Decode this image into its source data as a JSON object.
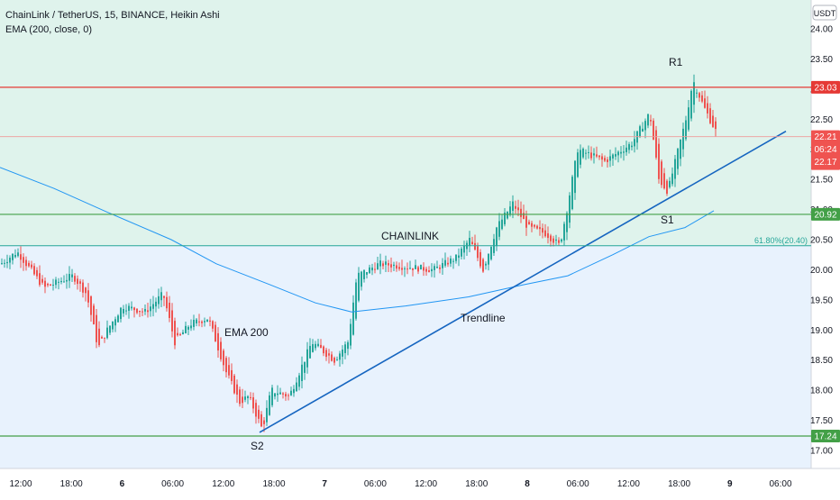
{
  "header": {
    "title": "ChainLink / TetherUS, 15, BINANCE, Heikin Ashi",
    "indicator": "EMA (200, close, 0)",
    "currency": "USDT"
  },
  "annotations": {
    "r1": "R1",
    "s1": "S1",
    "s2": "S2",
    "chainlink": "CHAINLINK",
    "ema": "EMA 200",
    "trendline": "Trendline",
    "fib": "61.80%(20.40)"
  },
  "price_tags": {
    "resistance": "23.03",
    "current": "22.21",
    "countdown": "06:24",
    "current_low": "22.17",
    "support1": "20.92",
    "support2": "17.24"
  },
  "colors": {
    "up": "#26a69a",
    "down": "#ef5350",
    "ema": "#2196f3",
    "trendline": "#1565c0",
    "resistance": "#e53935",
    "support": "#43a047",
    "upper_zone": "#dff3ec",
    "lower_zone": "#e8f2fd",
    "tag_blue": "#2962ff"
  },
  "chart_data": {
    "type": "candlestick",
    "symbol": "LINKUSDT",
    "exchange": "BINANCE",
    "interval": "15",
    "y_ticks": [
      "24.00",
      "23.50",
      "23.00",
      "22.50",
      "22.00",
      "21.50",
      "21.00",
      "20.50",
      "20.00",
      "19.50",
      "19.00",
      "18.50",
      "18.00",
      "17.50",
      "17.00"
    ],
    "x_ticks": [
      "12:00",
      "18:00",
      "6",
      "06:00",
      "12:00",
      "18:00",
      "7",
      "06:00",
      "12:00",
      "18:00",
      "8",
      "06:00",
      "12:00",
      "18:00",
      "9",
      "06:00"
    ],
    "ylim": [
      16.6,
      24.3
    ],
    "levels": {
      "resistance": 23.03,
      "support1": 20.92,
      "fib_61_8": 20.4,
      "support2": 17.24
    },
    "keypoints": [
      [
        0,
        20.1
      ],
      [
        18,
        20.3
      ],
      [
        48,
        19.7
      ],
      [
        80,
        19.9
      ],
      [
        95,
        19.6
      ],
      [
        108,
        18.7
      ],
      [
        118,
        19.0
      ],
      [
        135,
        19.4
      ],
      [
        160,
        19.3
      ],
      [
        180,
        19.6
      ],
      [
        193,
        18.8
      ],
      [
        210,
        19.1
      ],
      [
        230,
        19.2
      ],
      [
        250,
        18.3
      ],
      [
        265,
        17.8
      ],
      [
        275,
        17.9
      ],
      [
        290,
        17.35
      ],
      [
        300,
        18.0
      ],
      [
        320,
        17.9
      ],
      [
        345,
        18.8
      ],
      [
        370,
        18.5
      ],
      [
        385,
        18.8
      ],
      [
        395,
        19.9
      ],
      [
        420,
        20.1
      ],
      [
        450,
        20.05
      ],
      [
        480,
        20.0
      ],
      [
        505,
        20.2
      ],
      [
        520,
        20.5
      ],
      [
        535,
        20.0
      ],
      [
        550,
        20.7
      ],
      [
        568,
        21.1
      ],
      [
        585,
        20.7
      ],
      [
        605,
        20.6
      ],
      [
        620,
        20.4
      ],
      [
        628,
        21.0
      ],
      [
        640,
        22.0
      ],
      [
        670,
        21.8
      ],
      [
        700,
        22.1
      ],
      [
        720,
        22.6
      ],
      [
        730,
        21.5
      ],
      [
        740,
        21.3
      ],
      [
        760,
        22.5
      ],
      [
        768,
        23.15
      ],
      [
        780,
        22.7
      ],
      [
        795,
        22.25
      ]
    ],
    "ema_200": [
      [
        0,
        21.7
      ],
      [
        60,
        21.35
      ],
      [
        120,
        20.95
      ],
      [
        190,
        20.5
      ],
      [
        240,
        20.1
      ],
      [
        300,
        19.75
      ],
      [
        350,
        19.45
      ],
      [
        390,
        19.3
      ],
      [
        450,
        19.4
      ],
      [
        520,
        19.55
      ],
      [
        580,
        19.75
      ],
      [
        630,
        19.9
      ],
      [
        680,
        20.25
      ],
      [
        720,
        20.55
      ],
      [
        760,
        20.7
      ],
      [
        792,
        20.98
      ]
    ],
    "trendline": [
      [
        288,
        17.3
      ],
      [
        872,
        22.3
      ]
    ]
  }
}
